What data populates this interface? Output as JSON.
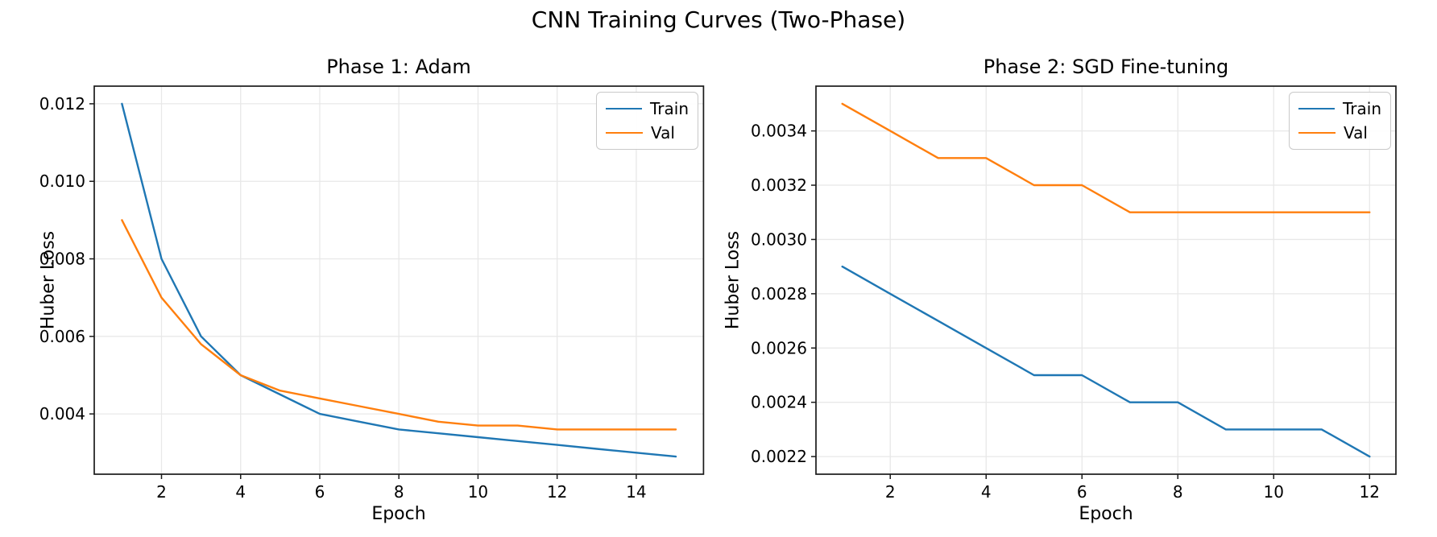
{
  "suptitle": "CNN Training Curves (Two-Phase)",
  "chart_data": [
    {
      "type": "line",
      "title": "Phase 1: Adam",
      "xlabel": "Epoch",
      "ylabel": "Huber Loss",
      "x": [
        1,
        2,
        3,
        4,
        5,
        6,
        7,
        8,
        9,
        10,
        11,
        12,
        13,
        14,
        15
      ],
      "series": [
        {
          "name": "Train",
          "color": "#1f77b4",
          "values": [
            0.012,
            0.008,
            0.006,
            0.005,
            0.0045,
            0.004,
            0.0038,
            0.0036,
            0.0035,
            0.0034,
            0.0033,
            0.0032,
            0.0031,
            0.003,
            0.0029
          ]
        },
        {
          "name": "Val",
          "color": "#ff7f0e",
          "values": [
            0.009,
            0.007,
            0.0058,
            0.005,
            0.0046,
            0.0044,
            0.0042,
            0.004,
            0.0038,
            0.0037,
            0.0037,
            0.0036,
            0.0036,
            0.0036,
            0.0036
          ]
        }
      ],
      "xticks": [
        2,
        4,
        6,
        8,
        10,
        12,
        14
      ],
      "xtick_labels": [
        "2",
        "4",
        "6",
        "8",
        "10",
        "12",
        "14"
      ],
      "yticks": [
        0.004,
        0.006,
        0.008,
        0.01,
        0.012
      ],
      "ytick_labels": [
        "0.004",
        "0.006",
        "0.008",
        "0.010",
        "0.012"
      ],
      "xlim": [
        0.3,
        15.7
      ],
      "ylim": [
        0.002445,
        0.012455
      ],
      "grid": true,
      "legend_position": "upper right"
    },
    {
      "type": "line",
      "title": "Phase 2: SGD Fine-tuning",
      "xlabel": "Epoch",
      "ylabel": "Huber Loss",
      "x": [
        1,
        2,
        3,
        4,
        5,
        6,
        7,
        8,
        9,
        10,
        11,
        12
      ],
      "series": [
        {
          "name": "Train",
          "color": "#1f77b4",
          "values": [
            0.0029,
            0.0028,
            0.0027,
            0.0026,
            0.0025,
            0.0025,
            0.0024,
            0.0024,
            0.0023,
            0.0023,
            0.0023,
            0.0022
          ]
        },
        {
          "name": "Val",
          "color": "#ff7f0e",
          "values": [
            0.0035,
            0.0034,
            0.0033,
            0.0033,
            0.0032,
            0.0032,
            0.0031,
            0.0031,
            0.0031,
            0.0031,
            0.0031,
            0.0031
          ]
        }
      ],
      "xticks": [
        2,
        4,
        6,
        8,
        10,
        12
      ],
      "xtick_labels": [
        "2",
        "4",
        "6",
        "8",
        "10",
        "12"
      ],
      "yticks": [
        0.0022,
        0.0024,
        0.0026,
        0.0028,
        0.003,
        0.0032,
        0.0034
      ],
      "ytick_labels": [
        "0.0022",
        "0.0024",
        "0.0026",
        "0.0028",
        "0.0030",
        "0.0032",
        "0.0034"
      ],
      "xlim": [
        0.45,
        12.55
      ],
      "ylim": [
        0.002135,
        0.003565
      ],
      "grid": true,
      "legend_position": "upper right"
    }
  ]
}
